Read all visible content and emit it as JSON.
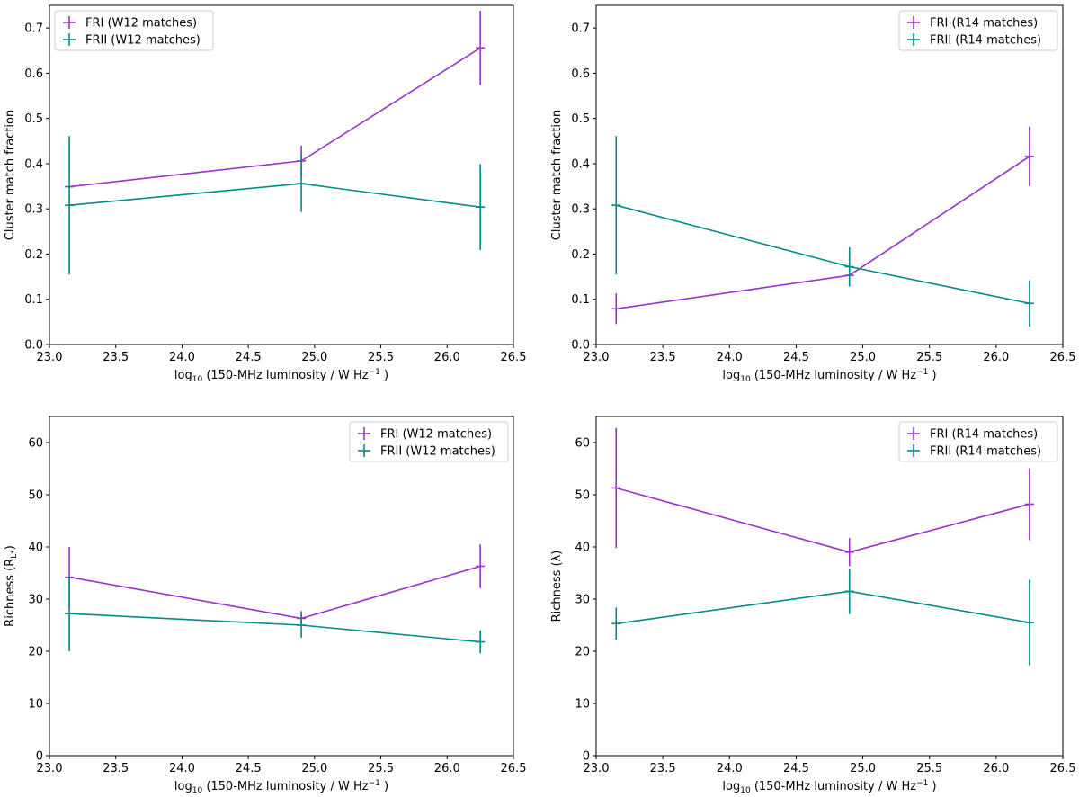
{
  "chart_data": [
    {
      "type": "line",
      "panel": "top-left",
      "xlabel_prefix": "log",
      "xlabel_sub": "10",
      "xlabel_rest": " (150-MHz luminosity / W Hz",
      "xlabel_sup": "−1",
      "xlabel_end": " )",
      "ylabel": "Cluster match fraction",
      "xlim": [
        23.0,
        26.5
      ],
      "ylim": [
        0,
        0.75
      ],
      "xticks": [
        23.0,
        23.5,
        24.0,
        24.5,
        25.0,
        25.5,
        26.0,
        26.5
      ],
      "xtick_labels": [
        "23.0",
        "23.5",
        "24.0",
        "24.5",
        "25.0",
        "25.5",
        "26.0",
        "26.5"
      ],
      "yticks": [
        0.0,
        0.1,
        0.2,
        0.3,
        0.4,
        0.5,
        0.6,
        0.7
      ],
      "ytick_labels": [
        "0.0",
        "0.1",
        "0.2",
        "0.3",
        "0.4",
        "0.5",
        "0.6",
        "0.7"
      ],
      "legend_position": "top-left",
      "series": [
        {
          "name": "FRI (W12 matches)",
          "color": "#9932CC",
          "x": [
            23.15,
            24.9,
            26.25
          ],
          "y": [
            0.349,
            0.406,
            0.656
          ],
          "yerr": [
            0.0,
            0.034,
            0.082
          ]
        },
        {
          "name": "FRII (W12 matches)",
          "color": "#008B8B",
          "x": [
            23.15,
            24.9,
            26.25
          ],
          "y": [
            0.308,
            0.356,
            0.304
          ],
          "yerr": [
            0.153,
            0.063,
            0.095
          ]
        }
      ]
    },
    {
      "type": "line",
      "panel": "top-right",
      "xlabel_prefix": "log",
      "xlabel_sub": "10",
      "xlabel_rest": " (150-MHz luminosity / W Hz",
      "xlabel_sup": "−1",
      "xlabel_end": " )",
      "ylabel": "Cluster match fraction",
      "xlim": [
        23.0,
        26.5
      ],
      "ylim": [
        0,
        0.75
      ],
      "xticks": [
        23.0,
        23.5,
        24.0,
        24.5,
        25.0,
        25.5,
        26.0,
        26.5
      ],
      "xtick_labels": [
        "23.0",
        "23.5",
        "24.0",
        "24.5",
        "25.0",
        "25.5",
        "26.0",
        "26.5"
      ],
      "yticks": [
        0.0,
        0.1,
        0.2,
        0.3,
        0.4,
        0.5,
        0.6,
        0.7
      ],
      "ytick_labels": [
        "0.0",
        "0.1",
        "0.2",
        "0.3",
        "0.4",
        "0.5",
        "0.6",
        "0.7"
      ],
      "legend_position": "top-right",
      "series": [
        {
          "name": "FRI (R14 matches)",
          "color": "#9932CC",
          "x": [
            23.15,
            24.9,
            26.25
          ],
          "y": [
            0.079,
            0.153,
            0.416
          ],
          "yerr": [
            0.034,
            0.025,
            0.066
          ]
        },
        {
          "name": "FRII (R14 matches)",
          "color": "#008B8B",
          "x": [
            23.15,
            24.9,
            26.25
          ],
          "y": [
            0.308,
            0.172,
            0.091
          ],
          "yerr": [
            0.153,
            0.043,
            0.051
          ]
        }
      ]
    },
    {
      "type": "line",
      "panel": "bottom-left",
      "xlabel_prefix": "log",
      "xlabel_sub": "10",
      "xlabel_rest": " (150-MHz luminosity / W Hz",
      "xlabel_sup": "−1",
      "xlabel_end": " )",
      "ylabel": "Richness (R",
      "ylabel_sub": "L*",
      "ylabel_end": ")",
      "xlim": [
        23.0,
        26.5
      ],
      "ylim": [
        0,
        65
      ],
      "xticks": [
        23.0,
        23.5,
        24.0,
        24.5,
        25.0,
        25.5,
        26.0,
        26.5
      ],
      "xtick_labels": [
        "23.0",
        "23.5",
        "24.0",
        "24.5",
        "25.0",
        "25.5",
        "26.0",
        "26.5"
      ],
      "yticks": [
        0,
        10,
        20,
        30,
        40,
        50,
        60
      ],
      "ytick_labels": [
        "0",
        "10",
        "20",
        "30",
        "40",
        "50",
        "60"
      ],
      "legend_position": "top-right",
      "series": [
        {
          "name": "FRI (W12 matches)",
          "color": "#9932CC",
          "x": [
            23.15,
            24.9,
            26.25
          ],
          "y": [
            34.2,
            26.3,
            36.3
          ],
          "yerr": [
            5.8,
            1.4,
            4.2
          ]
        },
        {
          "name": "FRII (W12 matches)",
          "color": "#008B8B",
          "x": [
            23.15,
            24.9,
            26.25
          ],
          "y": [
            27.2,
            25.0,
            21.8
          ],
          "yerr": [
            7.2,
            2.4,
            2.2
          ]
        }
      ]
    },
    {
      "type": "line",
      "panel": "bottom-right",
      "xlabel_prefix": "log",
      "xlabel_sub": "10",
      "xlabel_rest": " (150-MHz luminosity / W Hz",
      "xlabel_sup": "−1",
      "xlabel_end": " )",
      "ylabel": "Richness (λ)",
      "xlim": [
        23.0,
        26.5
      ],
      "ylim": [
        0,
        65
      ],
      "xticks": [
        23.0,
        23.5,
        24.0,
        24.5,
        25.0,
        25.5,
        26.0,
        26.5
      ],
      "xtick_labels": [
        "23.0",
        "23.5",
        "24.0",
        "24.5",
        "25.0",
        "25.5",
        "26.0",
        "26.5"
      ],
      "yticks": [
        0,
        10,
        20,
        30,
        40,
        50,
        60
      ],
      "ytick_labels": [
        "0",
        "10",
        "20",
        "30",
        "40",
        "50",
        "60"
      ],
      "legend_position": "top-right",
      "series": [
        {
          "name": "FRI (R14 matches)",
          "color": "#9932CC",
          "x": [
            23.15,
            24.9,
            26.25
          ],
          "y": [
            51.3,
            39.0,
            48.2
          ],
          "yerr": [
            11.5,
            2.7,
            6.9
          ]
        },
        {
          "name": "FRII (R14 matches)",
          "color": "#008B8B",
          "x": [
            23.15,
            24.9,
            26.25
          ],
          "y": [
            25.3,
            31.5,
            25.5
          ],
          "yerr": [
            3.1,
            4.4,
            8.2
          ]
        }
      ]
    }
  ]
}
